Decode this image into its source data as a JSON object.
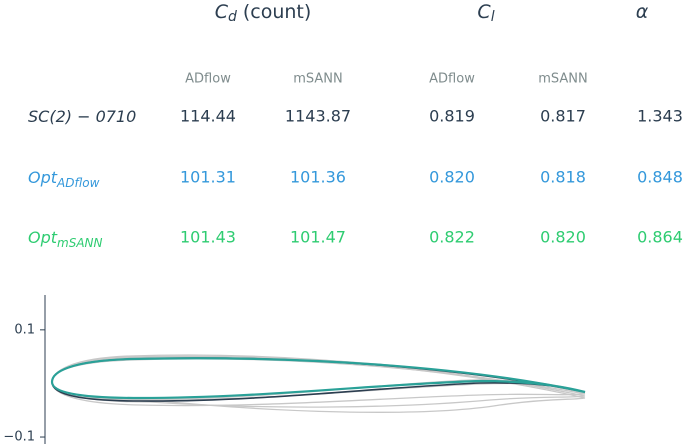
{
  "header": {
    "groups": [
      {
        "symbol": "C",
        "sub": "d",
        "unit": "(count)"
      },
      {
        "symbol": "C",
        "sub": "l"
      },
      {
        "symbol": "α"
      }
    ],
    "subheaders": [
      "ADflow",
      "mSANN",
      "ADflow",
      "mSANN"
    ]
  },
  "table": {
    "rows": [
      {
        "name": "SC(2) − 0710",
        "color": "#2c3e50",
        "cells": [
          "114.44",
          "1143.87",
          "0.819",
          "0.817",
          "1.343"
        ]
      },
      {
        "name": "Opt",
        "sub": "ADflow",
        "color": "#3498db",
        "cells": [
          "101.31",
          "101.36",
          "0.820",
          "0.818",
          "0.848"
        ]
      },
      {
        "name": "Opt",
        "sub": "mSANN",
        "color": "#2ecc71",
        "cells": [
          "101.43",
          "101.47",
          "0.822",
          "0.820",
          "0.864"
        ]
      }
    ]
  },
  "plot": {
    "ylim": [
      -0.113,
      0.165
    ],
    "yticks": [
      0.1,
      {
        "value": -0.1,
        "label": "−0.1"
      }
    ]
  }
}
